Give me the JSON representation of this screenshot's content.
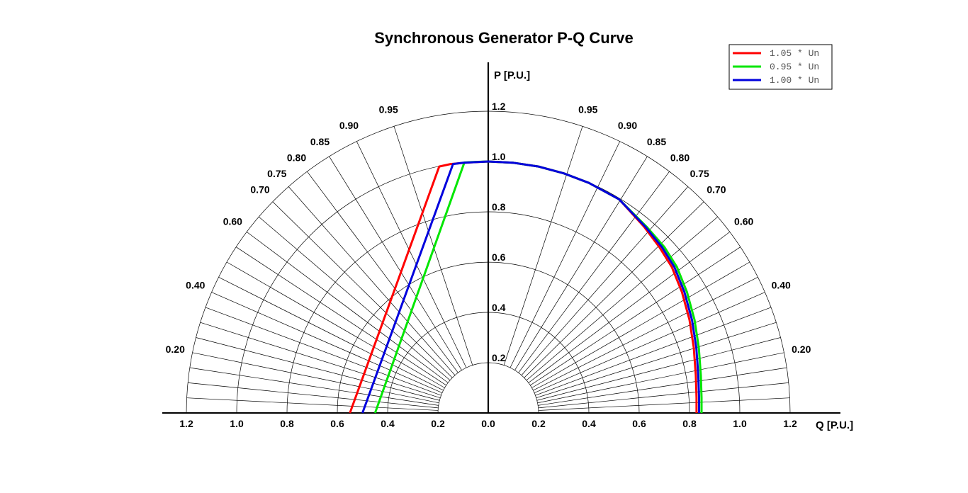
{
  "chart_data": {
    "type": "line",
    "title": "Synchronous Generator P-Q Curve",
    "xlabel": "Q [P.U.]",
    "ylabel": "P [P.U.]",
    "xlim": [
      -1.3,
      1.4
    ],
    "ylim": [
      0,
      1.4
    ],
    "radial_grid": [
      0.2,
      0.4,
      0.6,
      0.8,
      1.0,
      1.2
    ],
    "x_ticks": [
      {
        "value": -1.2,
        "label": "1.2"
      },
      {
        "value": -1.0,
        "label": "1.0"
      },
      {
        "value": -0.8,
        "label": "0.8"
      },
      {
        "value": -0.6,
        "label": "0.6"
      },
      {
        "value": -0.4,
        "label": "0.4"
      },
      {
        "value": -0.2,
        "label": "0.2"
      },
      {
        "value": 0.0,
        "label": "0.0"
      },
      {
        "value": 0.2,
        "label": "0.2"
      },
      {
        "value": 0.4,
        "label": "0.4"
      },
      {
        "value": 0.6,
        "label": "0.6"
      },
      {
        "value": 0.8,
        "label": "0.8"
      },
      {
        "value": 1.0,
        "label": "1.0"
      },
      {
        "value": 1.2,
        "label": "1.2"
      }
    ],
    "y_ticks": [
      {
        "value": 0.2,
        "label": "0.2"
      },
      {
        "value": 0.4,
        "label": "0.4"
      },
      {
        "value": 0.6,
        "label": "0.6"
      },
      {
        "value": 0.8,
        "label": "0.8"
      },
      {
        "value": 1.0,
        "label": "1.0"
      },
      {
        "value": 1.2,
        "label": "1.2"
      }
    ],
    "pf_lines": [
      0.05,
      0.1,
      0.15,
      0.2,
      0.25,
      0.3,
      0.35,
      0.4,
      0.45,
      0.5,
      0.55,
      0.6,
      0.65,
      0.7,
      0.75,
      0.8,
      0.85,
      0.9,
      0.95
    ],
    "pf_labels": [
      "0.20",
      "0.40",
      "0.60",
      "0.70",
      "0.75",
      "0.80",
      "0.85",
      "0.90",
      "0.95"
    ],
    "legend_position": "top-right",
    "series": [
      {
        "name": "1.05 * Un",
        "color": "#ff0000",
        "points": [
          [
            -0.55,
            0.0
          ],
          [
            -0.195,
            0.98
          ],
          [
            -0.15,
            0.99
          ],
          [
            -0.08,
            0.996
          ],
          [
            0.0,
            1.0
          ],
          [
            0.1,
            0.995
          ],
          [
            0.2,
            0.98
          ],
          [
            0.3,
            0.953
          ],
          [
            0.4,
            0.915
          ],
          [
            0.52,
            0.85
          ],
          [
            0.62,
            0.74
          ],
          [
            0.68,
            0.66
          ],
          [
            0.73,
            0.58
          ],
          [
            0.77,
            0.48
          ],
          [
            0.8,
            0.37
          ],
          [
            0.817,
            0.26
          ],
          [
            0.825,
            0.15
          ],
          [
            0.828,
            0.06
          ],
          [
            0.828,
            0.0
          ]
        ]
      },
      {
        "name": "0.95 * Un",
        "color": "#00e600",
        "points": [
          [
            -0.45,
            0.0
          ],
          [
            -0.095,
            0.996
          ],
          [
            -0.06,
            0.998
          ],
          [
            0.0,
            1.0
          ],
          [
            0.1,
            0.995
          ],
          [
            0.2,
            0.98
          ],
          [
            0.3,
            0.953
          ],
          [
            0.4,
            0.915
          ],
          [
            0.52,
            0.85
          ],
          [
            0.63,
            0.74
          ],
          [
            0.7,
            0.66
          ],
          [
            0.75,
            0.58
          ],
          [
            0.79,
            0.48
          ],
          [
            0.82,
            0.37
          ],
          [
            0.837,
            0.26
          ],
          [
            0.845,
            0.15
          ],
          [
            0.848,
            0.06
          ],
          [
            0.848,
            0.0
          ]
        ]
      },
      {
        "name": "1.00 * Un",
        "color": "#0000dd",
        "points": [
          [
            -0.5,
            0.0
          ],
          [
            -0.14,
            0.99
          ],
          [
            -0.1,
            0.995
          ],
          [
            0.0,
            1.0
          ],
          [
            0.1,
            0.995
          ],
          [
            0.2,
            0.98
          ],
          [
            0.3,
            0.953
          ],
          [
            0.4,
            0.915
          ],
          [
            0.52,
            0.85
          ],
          [
            0.625,
            0.74
          ],
          [
            0.69,
            0.66
          ],
          [
            0.74,
            0.58
          ],
          [
            0.78,
            0.48
          ],
          [
            0.81,
            0.37
          ],
          [
            0.827,
            0.26
          ],
          [
            0.835,
            0.15
          ],
          [
            0.838,
            0.06
          ],
          [
            0.838,
            0.0
          ]
        ]
      }
    ]
  }
}
